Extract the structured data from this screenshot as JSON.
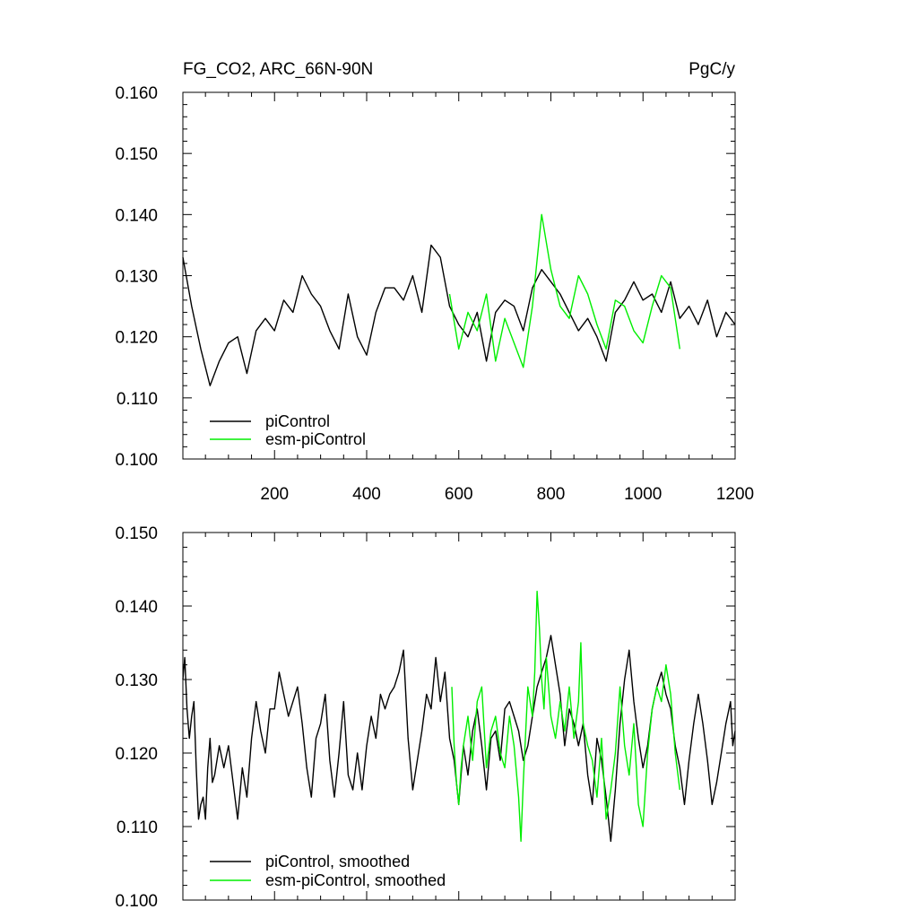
{
  "chart_data": [
    {
      "type": "line",
      "title": "FG_CO2, ARC_66N-90N",
      "units": "PgC/y",
      "xlim": [
        1,
        1200
      ],
      "ylim": [
        0.1,
        0.16
      ],
      "xticks": [
        200,
        400,
        600,
        800,
        1000,
        1200
      ],
      "xtick_labels": [
        "200",
        "400",
        "600",
        "800",
        "1000",
        "1200"
      ],
      "yticks": [
        0.1,
        0.11,
        0.12,
        0.13,
        0.14,
        0.15,
        0.16
      ],
      "ytick_labels": [
        "0.100",
        "0.110",
        "0.120",
        "0.130",
        "0.140",
        "0.150",
        "0.160"
      ],
      "grid": false,
      "legend_position": "bottom-left",
      "series": [
        {
          "name": "piControl",
          "color": "#000000",
          "x": [
            1,
            20,
            40,
            60,
            80,
            100,
            120,
            140,
            160,
            180,
            200,
            220,
            240,
            260,
            280,
            300,
            320,
            340,
            360,
            380,
            400,
            420,
            440,
            460,
            480,
            500,
            520,
            540,
            560,
            580,
            600,
            620,
            640,
            660,
            680,
            700,
            720,
            740,
            760,
            780,
            800,
            820,
            840,
            860,
            880,
            900,
            920,
            940,
            960,
            980,
            1000,
            1020,
            1040,
            1060,
            1080,
            1100,
            1120,
            1140,
            1160,
            1180,
            1200
          ],
          "y": [
            0.133,
            0.125,
            0.118,
            0.112,
            0.116,
            0.119,
            0.12,
            0.114,
            0.121,
            0.123,
            0.121,
            0.126,
            0.124,
            0.13,
            0.127,
            0.125,
            0.121,
            0.118,
            0.127,
            0.12,
            0.117,
            0.124,
            0.128,
            0.128,
            0.126,
            0.13,
            0.124,
            0.135,
            0.133,
            0.125,
            0.122,
            0.12,
            0.124,
            0.116,
            0.124,
            0.126,
            0.125,
            0.121,
            0.128,
            0.131,
            0.129,
            0.127,
            0.124,
            0.121,
            0.123,
            0.12,
            0.116,
            0.124,
            0.126,
            0.129,
            0.126,
            0.127,
            0.124,
            0.129,
            0.123,
            0.125,
            0.122,
            0.126,
            0.12,
            0.124,
            0.122
          ]
        },
        {
          "name": "esm-piControl",
          "color": "#00ee00",
          "x": [
            580,
            600,
            620,
            640,
            660,
            680,
            700,
            720,
            740,
            760,
            780,
            800,
            820,
            840,
            860,
            880,
            900,
            920,
            940,
            960,
            980,
            1000,
            1020,
            1040,
            1060,
            1080
          ],
          "y": [
            0.127,
            0.118,
            0.124,
            0.121,
            0.127,
            0.116,
            0.123,
            0.119,
            0.115,
            0.125,
            0.14,
            0.131,
            0.125,
            0.123,
            0.13,
            0.127,
            0.122,
            0.118,
            0.126,
            0.125,
            0.121,
            0.119,
            0.125,
            0.13,
            0.128,
            0.118
          ]
        }
      ]
    },
    {
      "type": "line",
      "xlim": [
        1,
        1200
      ],
      "ylim": [
        0.1,
        0.15
      ],
      "yticks": [
        0.1,
        0.11,
        0.12,
        0.13,
        0.14,
        0.15
      ],
      "ytick_labels": [
        "0.100",
        "0.110",
        "0.120",
        "0.130",
        "0.140",
        "0.150"
      ],
      "xticks": [
        200,
        400,
        600,
        800,
        1000,
        1200
      ],
      "grid": false,
      "legend_position": "bottom-left",
      "series": [
        {
          "name": "piControl, smoothed",
          "color": "#000000",
          "x": [
            1,
            5,
            10,
            15,
            20,
            25,
            30,
            35,
            40,
            45,
            50,
            55,
            60,
            65,
            70,
            80,
            90,
            100,
            110,
            120,
            130,
            140,
            150,
            160,
            170,
            180,
            190,
            200,
            210,
            220,
            230,
            240,
            250,
            260,
            270,
            280,
            290,
            300,
            310,
            320,
            330,
            340,
            350,
            360,
            370,
            380,
            390,
            400,
            410,
            420,
            430,
            440,
            450,
            460,
            470,
            480,
            490,
            500,
            510,
            520,
            530,
            540,
            550,
            560,
            570,
            580,
            590,
            600,
            610,
            620,
            630,
            640,
            650,
            660,
            670,
            680,
            690,
            700,
            710,
            720,
            730,
            740,
            750,
            760,
            770,
            780,
            790,
            800,
            810,
            820,
            830,
            840,
            850,
            860,
            870,
            880,
            890,
            900,
            910,
            920,
            930,
            940,
            950,
            960,
            970,
            980,
            990,
            1000,
            1010,
            1020,
            1030,
            1040,
            1050,
            1060,
            1070,
            1080,
            1090,
            1100,
            1110,
            1120,
            1130,
            1140,
            1150,
            1160,
            1170,
            1180,
            1190,
            1195,
            1200
          ],
          "y": [
            0.13,
            0.133,
            0.126,
            0.122,
            0.125,
            0.127,
            0.118,
            0.111,
            0.113,
            0.114,
            0.111,
            0.118,
            0.122,
            0.116,
            0.117,
            0.121,
            0.118,
            0.121,
            0.116,
            0.111,
            0.118,
            0.114,
            0.122,
            0.127,
            0.123,
            0.12,
            0.126,
            0.126,
            0.131,
            0.128,
            0.125,
            0.127,
            0.129,
            0.124,
            0.118,
            0.114,
            0.122,
            0.124,
            0.128,
            0.119,
            0.114,
            0.12,
            0.127,
            0.117,
            0.115,
            0.12,
            0.115,
            0.121,
            0.125,
            0.122,
            0.128,
            0.126,
            0.128,
            0.129,
            0.131,
            0.134,
            0.122,
            0.115,
            0.119,
            0.123,
            0.128,
            0.126,
            0.133,
            0.127,
            0.131,
            0.122,
            0.119,
            0.113,
            0.121,
            0.117,
            0.123,
            0.126,
            0.121,
            0.115,
            0.122,
            0.123,
            0.119,
            0.126,
            0.127,
            0.125,
            0.123,
            0.119,
            0.121,
            0.125,
            0.129,
            0.131,
            0.133,
            0.136,
            0.132,
            0.128,
            0.121,
            0.126,
            0.124,
            0.121,
            0.124,
            0.117,
            0.113,
            0.122,
            0.119,
            0.114,
            0.108,
            0.115,
            0.124,
            0.13,
            0.134,
            0.127,
            0.122,
            0.118,
            0.121,
            0.126,
            0.129,
            0.131,
            0.128,
            0.126,
            0.121,
            0.118,
            0.113,
            0.119,
            0.124,
            0.128,
            0.124,
            0.119,
            0.113,
            0.116,
            0.12,
            0.124,
            0.127,
            0.121,
            0.123
          ]
        },
        {
          "name": "esm-piControl, smoothed",
          "color": "#00ee00",
          "x": [
            585,
            590,
            595,
            600,
            605,
            610,
            620,
            630,
            640,
            650,
            660,
            670,
            680,
            690,
            700,
            710,
            720,
            730,
            735,
            740,
            750,
            760,
            765,
            770,
            775,
            780,
            785,
            790,
            800,
            810,
            820,
            830,
            840,
            850,
            860,
            865,
            870,
            880,
            890,
            900,
            910,
            920,
            930,
            940,
            950,
            960,
            970,
            980,
            990,
            1000,
            1010,
            1020,
            1030,
            1040,
            1050,
            1060,
            1070,
            1080
          ],
          "y": [
            0.129,
            0.121,
            0.116,
            0.113,
            0.118,
            0.121,
            0.125,
            0.119,
            0.127,
            0.129,
            0.118,
            0.123,
            0.125,
            0.12,
            0.118,
            0.125,
            0.121,
            0.114,
            0.108,
            0.116,
            0.129,
            0.125,
            0.131,
            0.142,
            0.137,
            0.13,
            0.126,
            0.133,
            0.125,
            0.122,
            0.127,
            0.123,
            0.129,
            0.122,
            0.127,
            0.135,
            0.124,
            0.121,
            0.119,
            0.114,
            0.122,
            0.111,
            0.115,
            0.12,
            0.129,
            0.121,
            0.117,
            0.124,
            0.113,
            0.11,
            0.12,
            0.126,
            0.129,
            0.127,
            0.132,
            0.128,
            0.12,
            0.115
          ]
        }
      ]
    }
  ]
}
